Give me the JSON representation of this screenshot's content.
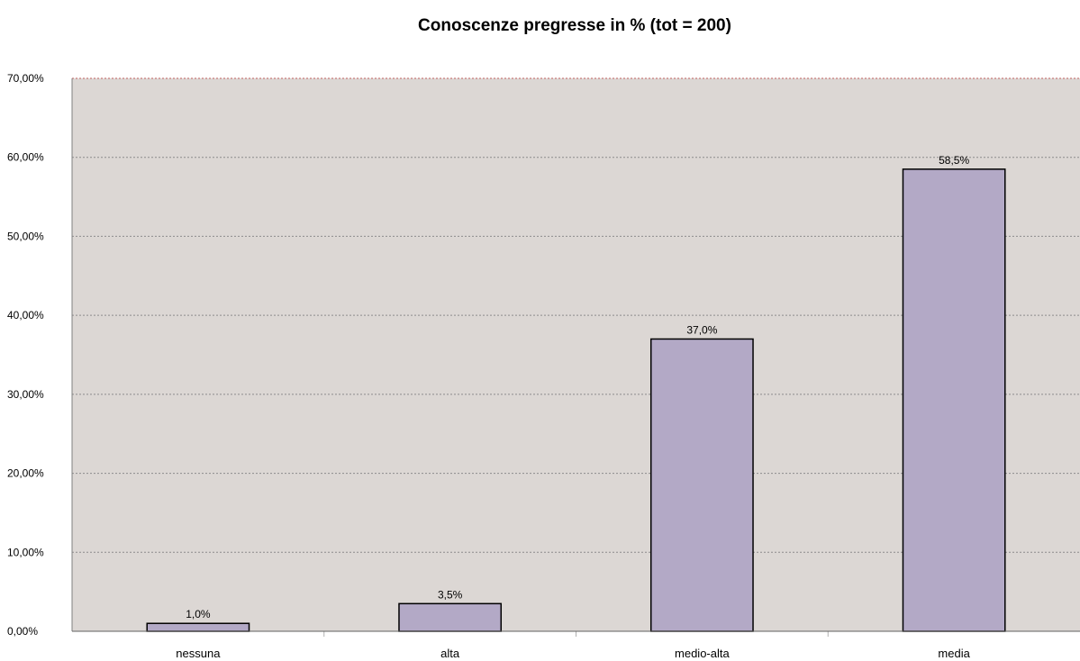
{
  "chart_data": {
    "type": "bar",
    "title": "Conoscenze pregresse in % (tot = 200)",
    "xlabel": "",
    "ylabel": "",
    "categories": [
      "nessuna",
      "alta",
      "medio-alta",
      "media"
    ],
    "values": [
      1.0,
      3.5,
      37.0,
      58.5
    ],
    "data_labels": [
      "1,0%",
      "3,5%",
      "37,0%",
      "58,5%"
    ],
    "ylim": [
      0,
      70
    ],
    "yticks": [
      0,
      10,
      20,
      30,
      40,
      50,
      60,
      70
    ],
    "ytick_labels": [
      "0,00%",
      "10,00%",
      "20,00%",
      "30,00%",
      "40,00%",
      "50,00%",
      "60,00%",
      "70,00%"
    ],
    "grid": true,
    "legend": "none",
    "colors": {
      "bar_fill": "#b3a9c6",
      "bar_stroke": "#000000",
      "plot_background": "#dcd7d4",
      "gridline": "#8c8c8c"
    }
  }
}
